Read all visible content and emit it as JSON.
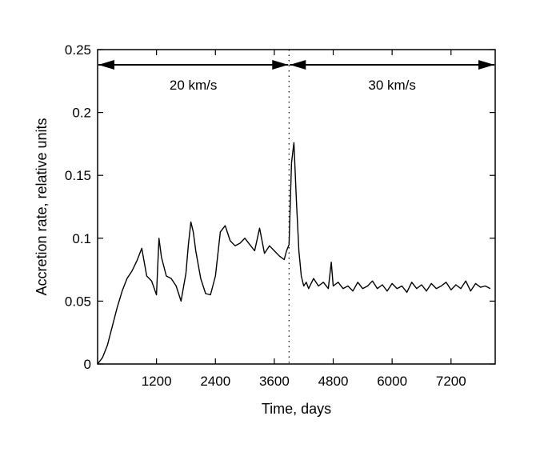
{
  "chart_data": {
    "type": "line",
    "xlabel": "Time, days",
    "ylabel": "Accretion rate, relative units",
    "xlim": [
      0,
      8100
    ],
    "ylim": [
      0,
      0.25
    ],
    "x_ticks": [
      {
        "value": 1200,
        "label": "1200"
      },
      {
        "value": 2400,
        "label": "2400"
      },
      {
        "value": 3600,
        "label": "3600"
      },
      {
        "value": 4800,
        "label": "4800"
      },
      {
        "value": 6000,
        "label": "6000"
      },
      {
        "value": 7200,
        "label": "7200"
      }
    ],
    "y_ticks": [
      {
        "value": 0,
        "label": "0"
      },
      {
        "value": 0.05,
        "label": "0.05"
      },
      {
        "value": 0.1,
        "label": "0.1"
      },
      {
        "value": 0.15,
        "label": "0.15"
      },
      {
        "value": 0.2,
        "label": "0.2"
      },
      {
        "value": 0.25,
        "label": "0.25"
      }
    ],
    "grid": false,
    "divider_x": 3900,
    "annotations": [
      {
        "text": "20 km/s",
        "x_from": 0,
        "x_to": 3900
      },
      {
        "text": "30 km/s",
        "x_from": 3900,
        "x_to": 8100
      }
    ],
    "series": [
      {
        "x": [
          0,
          100,
          200,
          300,
          400,
          500,
          600,
          700,
          800,
          900,
          1000,
          1100,
          1200,
          1250,
          1300,
          1400,
          1500,
          1600,
          1700,
          1800,
          1850,
          1900,
          1950,
          2000,
          2100,
          2200,
          2300,
          2400,
          2500,
          2600,
          2700,
          2800,
          2900,
          3000,
          3100,
          3200,
          3300,
          3400,
          3500,
          3600,
          3700,
          3800,
          3850,
          3900,
          3950,
          4000,
          4050,
          4100,
          4150,
          4200,
          4250,
          4300,
          4400,
          4500,
          4600,
          4700,
          4760,
          4800,
          4900,
          5000,
          5100,
          5200,
          5300,
          5400,
          5500,
          5600,
          5700,
          5800,
          5900,
          6000,
          6100,
          6200,
          6300,
          6400,
          6500,
          6600,
          6700,
          6800,
          6900,
          7000,
          7100,
          7200,
          7300,
          7400,
          7500,
          7600,
          7700,
          7800,
          7900,
          8000
        ],
        "y": [
          0,
          0.005,
          0.015,
          0.03,
          0.045,
          0.058,
          0.068,
          0.074,
          0.082,
          0.092,
          0.07,
          0.066,
          0.055,
          0.1,
          0.085,
          0.07,
          0.068,
          0.062,
          0.05,
          0.072,
          0.095,
          0.113,
          0.105,
          0.09,
          0.068,
          0.056,
          0.055,
          0.07,
          0.105,
          0.11,
          0.098,
          0.094,
          0.096,
          0.1,
          0.095,
          0.09,
          0.108,
          0.088,
          0.094,
          0.09,
          0.086,
          0.083,
          0.09,
          0.095,
          0.16,
          0.176,
          0.13,
          0.09,
          0.07,
          0.062,
          0.065,
          0.06,
          0.068,
          0.062,
          0.065,
          0.06,
          0.081,
          0.062,
          0.065,
          0.06,
          0.062,
          0.058,
          0.065,
          0.06,
          0.062,
          0.066,
          0.06,
          0.063,
          0.058,
          0.064,
          0.06,
          0.062,
          0.057,
          0.065,
          0.06,
          0.063,
          0.058,
          0.064,
          0.06,
          0.062,
          0.065,
          0.059,
          0.063,
          0.06,
          0.066,
          0.058,
          0.064,
          0.061,
          0.062,
          0.06
        ]
      }
    ]
  }
}
